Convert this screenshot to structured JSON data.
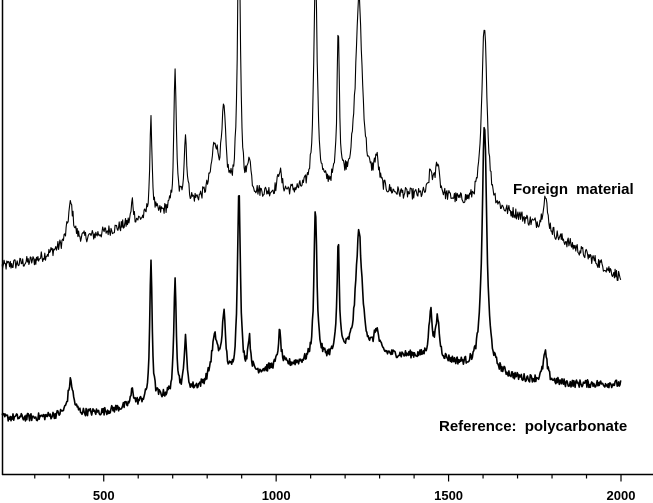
{
  "chart_data": {
    "type": "line",
    "title": "",
    "xlabel": "",
    "ylabel": "",
    "xlim": [
      205,
      2000
    ],
    "xticks": [
      500,
      1000,
      1500,
      2000
    ],
    "xtick_labels": [
      "500",
      "1000",
      "1500",
      "2000"
    ],
    "grid": false,
    "series": [
      {
        "name": "Foreign  material",
        "baseline": [
          [
            205,
            0.06
          ],
          [
            300,
            0.07
          ],
          [
            400,
            0.1
          ],
          [
            600,
            0.14
          ],
          [
            800,
            0.18
          ],
          [
            1000,
            0.19
          ],
          [
            1200,
            0.2
          ],
          [
            1300,
            0.19
          ],
          [
            1500,
            0.18
          ],
          [
            1700,
            0.15
          ],
          [
            1850,
            0.1
          ],
          [
            2000,
            0.04
          ]
        ],
        "peaks": [
          {
            "x": 404,
            "h": 0.07,
            "w": 10
          },
          {
            "x": 583,
            "h": 0.04,
            "w": 4
          },
          {
            "x": 637,
            "h": 0.17,
            "w": 4
          },
          {
            "x": 707,
            "h": 0.25,
            "w": 4
          },
          {
            "x": 737,
            "h": 0.12,
            "w": 5
          },
          {
            "x": 822,
            "h": 0.09,
            "w": 12
          },
          {
            "x": 848,
            "h": 0.14,
            "w": 7
          },
          {
            "x": 892,
            "h": 0.49,
            "w": 5
          },
          {
            "x": 922,
            "h": 0.06,
            "w": 5
          },
          {
            "x": 1010,
            "h": 0.04,
            "w": 6
          },
          {
            "x": 1114,
            "h": 0.39,
            "w": 6
          },
          {
            "x": 1180,
            "h": 0.28,
            "w": 4
          },
          {
            "x": 1240,
            "h": 0.34,
            "w": 12
          },
          {
            "x": 1291,
            "h": 0.05,
            "w": 8
          },
          {
            "x": 1448,
            "h": 0.04,
            "w": 7
          },
          {
            "x": 1468,
            "h": 0.06,
            "w": 7
          },
          {
            "x": 1604,
            "h": 0.33,
            "w": 9
          },
          {
            "x": 1780,
            "h": 0.06,
            "w": 8
          }
        ]
      },
      {
        "name": "Reference:  polycarbonate",
        "baseline": [
          [
            205,
            0.04
          ],
          [
            300,
            0.04
          ],
          [
            500,
            0.05
          ],
          [
            700,
            0.08
          ],
          [
            900,
            0.11
          ],
          [
            1000,
            0.13
          ],
          [
            1100,
            0.14
          ],
          [
            1200,
            0.15
          ],
          [
            1300,
            0.15
          ],
          [
            1400,
            0.15
          ],
          [
            1500,
            0.14
          ],
          [
            1700,
            0.11
          ],
          [
            1850,
            0.1
          ],
          [
            2000,
            0.1
          ]
        ],
        "peaks": [
          {
            "x": 404,
            "h": 0.06,
            "w": 9
          },
          {
            "x": 583,
            "h": 0.03,
            "w": 4
          },
          {
            "x": 637,
            "h": 0.25,
            "w": 4
          },
          {
            "x": 707,
            "h": 0.21,
            "w": 4
          },
          {
            "x": 737,
            "h": 0.1,
            "w": 4
          },
          {
            "x": 822,
            "h": 0.08,
            "w": 12
          },
          {
            "x": 848,
            "h": 0.11,
            "w": 6
          },
          {
            "x": 892,
            "h": 0.34,
            "w": 5
          },
          {
            "x": 922,
            "h": 0.06,
            "w": 5
          },
          {
            "x": 1010,
            "h": 0.06,
            "w": 5
          },
          {
            "x": 1114,
            "h": 0.27,
            "w": 5
          },
          {
            "x": 1180,
            "h": 0.2,
            "w": 4
          },
          {
            "x": 1240,
            "h": 0.22,
            "w": 11
          },
          {
            "x": 1291,
            "h": 0.04,
            "w": 8
          },
          {
            "x": 1448,
            "h": 0.08,
            "w": 6
          },
          {
            "x": 1468,
            "h": 0.07,
            "w": 6
          },
          {
            "x": 1604,
            "h": 0.44,
            "w": 8
          },
          {
            "x": 1780,
            "h": 0.05,
            "w": 7
          }
        ]
      }
    ]
  },
  "colors": {
    "line": "#000000",
    "background": "#ffffff"
  }
}
